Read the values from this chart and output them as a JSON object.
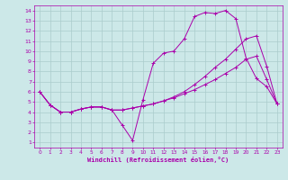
{
  "xlabel": "Windchill (Refroidissement éolien,°C)",
  "bg_color": "#cce8e8",
  "line_color": "#aa00aa",
  "grid_color": "#aacccc",
  "xlim": [
    -0.5,
    23.5
  ],
  "ylim": [
    0.5,
    14.5
  ],
  "xticks": [
    0,
    1,
    2,
    3,
    4,
    5,
    6,
    7,
    8,
    9,
    10,
    11,
    12,
    13,
    14,
    15,
    16,
    17,
    18,
    19,
    20,
    21,
    22,
    23
  ],
  "yticks": [
    1,
    2,
    3,
    4,
    5,
    6,
    7,
    8,
    9,
    10,
    11,
    12,
    13,
    14
  ],
  "line1_x": [
    0,
    1,
    2,
    3,
    4,
    5,
    6,
    7,
    8,
    9,
    10,
    11,
    12,
    13,
    14,
    15,
    16,
    17,
    18,
    19,
    20,
    21,
    22,
    23
  ],
  "line1_y": [
    6.0,
    4.7,
    4.0,
    4.0,
    4.3,
    4.5,
    4.5,
    4.2,
    2.7,
    1.2,
    5.2,
    8.8,
    9.8,
    10.0,
    11.2,
    13.4,
    13.8,
    13.7,
    14.0,
    13.2,
    9.3,
    7.3,
    6.5,
    4.8
  ],
  "line2_x": [
    0,
    1,
    2,
    3,
    4,
    5,
    6,
    7,
    8,
    9,
    10,
    11,
    12,
    13,
    14,
    15,
    16,
    17,
    18,
    19,
    20,
    21,
    22,
    23
  ],
  "line2_y": [
    6.0,
    4.7,
    4.0,
    4.0,
    4.3,
    4.5,
    4.5,
    4.2,
    4.2,
    4.4,
    4.6,
    4.8,
    5.1,
    5.4,
    5.8,
    6.2,
    6.7,
    7.2,
    7.8,
    8.4,
    9.2,
    9.5,
    7.2,
    4.8
  ],
  "line3_x": [
    0,
    1,
    2,
    3,
    4,
    5,
    6,
    7,
    8,
    9,
    10,
    11,
    12,
    13,
    14,
    15,
    16,
    17,
    18,
    19,
    20,
    21,
    22,
    23
  ],
  "line3_y": [
    6.0,
    4.7,
    4.0,
    4.0,
    4.3,
    4.5,
    4.5,
    4.2,
    4.2,
    4.4,
    4.6,
    4.8,
    5.1,
    5.5,
    6.0,
    6.7,
    7.5,
    8.4,
    9.2,
    10.2,
    11.2,
    11.5,
    8.5,
    4.8
  ]
}
